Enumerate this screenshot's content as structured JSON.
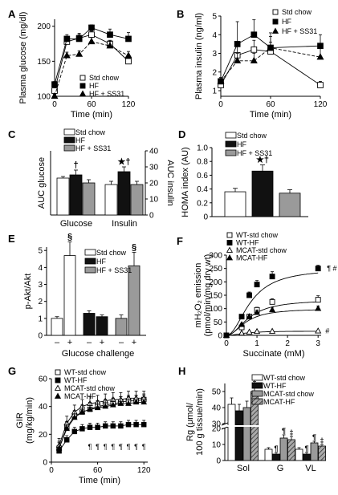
{
  "chart_data": [
    {
      "panel": "A",
      "type": "line",
      "xlabel": "Time (min)",
      "ylabel": "Plasma glucose (mg/dl)",
      "xlim": [
        0,
        120
      ],
      "ylim": [
        100,
        210
      ],
      "xticks": [
        "0",
        "60",
        "120"
      ],
      "yticks": [
        "100",
        "150",
        "200"
      ],
      "legend": [
        "Std chow",
        "HF",
        "HF + SS31"
      ],
      "x": [
        0,
        20,
        40,
        60,
        90,
        120
      ],
      "series": [
        {
          "name": "Std chow",
          "values": [
            108,
            178,
            183,
            188,
            175,
            150
          ],
          "err": [
            3,
            5,
            5,
            5,
            5,
            5
          ],
          "marker": "open-square",
          "line": "solid"
        },
        {
          "name": "HF",
          "values": [
            117,
            182,
            182,
            198,
            188,
            182
          ],
          "err": [
            4,
            6,
            8,
            4,
            8,
            9
          ],
          "marker": "filled-square",
          "line": "solid"
        },
        {
          "name": "HF + SS31",
          "values": [
            100,
            158,
            160,
            178,
            172,
            158
          ],
          "err": [
            3,
            5,
            5,
            6,
            6,
            6
          ],
          "marker": "filled-triangle",
          "line": "dashed"
        }
      ]
    },
    {
      "panel": "B",
      "type": "line",
      "xlabel": "Time (min)",
      "ylabel": "Plasma insulin (ng/ml)",
      "xlim": [
        0,
        120
      ],
      "ylim": [
        0.7,
        5
      ],
      "xticks": [
        "0",
        "60",
        "120"
      ],
      "yticks": [
        "1",
        "2",
        "3",
        "4",
        "5"
      ],
      "legend": [
        "Std chow",
        "HF",
        "HF + SS31"
      ],
      "x": [
        0,
        20,
        40,
        60,
        120
      ],
      "series": [
        {
          "name": "Std chow",
          "values": [
            1.3,
            2.9,
            3.2,
            3.1,
            1.3
          ],
          "err": [
            0.2,
            0.6,
            0.5,
            0.5,
            0.2
          ],
          "marker": "open-square",
          "line": "solid"
        },
        {
          "name": "HF",
          "values": [
            1.5,
            3.5,
            4.0,
            3.3,
            3.4
          ],
          "err": [
            0.2,
            1.2,
            0.8,
            0.8,
            0.6
          ],
          "marker": "filled-square",
          "line": "solid"
        },
        {
          "name": "HF + SS31",
          "values": [
            1.5,
            2.6,
            2.6,
            3.3,
            2.8
          ],
          "err": [
            0.2,
            0.4,
            0.4,
            0.6,
            0.5
          ],
          "marker": "filled-triangle",
          "line": "dashed"
        }
      ]
    },
    {
      "panel": "C",
      "type": "bar",
      "ylabel": "AUC glucose",
      "ylabel_right": "AUC insulin",
      "categories": [
        "Glucose",
        "Insulin"
      ],
      "ylim_right": [
        0,
        40
      ],
      "yticks_right": [
        "0",
        "10",
        "20",
        "30",
        "40"
      ],
      "legend": [
        "Std chow",
        "HF",
        "HF + SS31"
      ],
      "series": [
        {
          "name": "Std chow",
          "values": [
            23,
            19
          ],
          "err": [
            1,
            2
          ],
          "fill": "#ffffff"
        },
        {
          "name": "HF",
          "values": [
            25,
            27
          ],
          "err": [
            3,
            3
          ],
          "fill": "#111111"
        },
        {
          "name": "HF + SS31",
          "values": [
            20,
            19
          ],
          "err": [
            2,
            2
          ],
          "fill": "#9a9a9a"
        }
      ],
      "annotations": [
        {
          "category": "Glucose",
          "series": "HF",
          "text": "†"
        },
        {
          "category": "Insulin",
          "series": "HF",
          "text": "★†"
        }
      ]
    },
    {
      "panel": "D",
      "type": "bar",
      "ylabel": "HOMA index (AU)",
      "ylim": [
        0,
        1.0
      ],
      "yticks": [
        "0",
        "0.2",
        "0.4",
        "0.6",
        "0.8",
        "1.0"
      ],
      "legend": [
        "Std chow",
        "HF",
        "HF + SS31"
      ],
      "categories": [
        "Std chow",
        "HF",
        "HF + SS31"
      ],
      "values": [
        0.36,
        0.66,
        0.34
      ],
      "err": [
        0.05,
        0.09,
        0.05
      ],
      "fills": [
        "#ffffff",
        "#111111",
        "#9a9a9a"
      ],
      "annotations": [
        {
          "category": "HF",
          "text": "★†"
        }
      ]
    },
    {
      "panel": "E",
      "type": "bar",
      "ylabel": "p-Akt/Akt",
      "xlabel": "Glucose challenge",
      "ylim": [
        0,
        5.2
      ],
      "yticks": [
        "0",
        "1",
        "2",
        "3",
        "4",
        "5"
      ],
      "legend": [
        "Std chow",
        "HF",
        "HF + SS31"
      ],
      "categories": [
        "–",
        "+",
        "–",
        "+",
        "–",
        "+"
      ],
      "values": [
        1.0,
        4.7,
        1.3,
        1.1,
        1.0,
        4.1
      ],
      "err": [
        0.1,
        0.8,
        0.15,
        0.1,
        0.2,
        0.8
      ],
      "fills": [
        "#ffffff",
        "#ffffff",
        "#111111",
        "#111111",
        "#9a9a9a",
        "#9a9a9a"
      ],
      "annotations": [
        {
          "index": 1,
          "text": "§"
        },
        {
          "index": 5,
          "text": "§"
        }
      ]
    },
    {
      "panel": "F",
      "type": "line",
      "xlabel": "Succinate (mM)",
      "ylabel": "mH₂O₂ emission (pmol/min/mg dry wt)",
      "xlim": [
        0,
        3.1
      ],
      "ylim": [
        0,
        300
      ],
      "xticks": [
        "0",
        "1",
        "2",
        "3"
      ],
      "yticks": [
        "0",
        "50",
        "100",
        "150",
        "200",
        "250",
        "300"
      ],
      "legend": [
        "WT-std chow",
        "WT-HF",
        "MCAT-std chow",
        "MCAT-HF"
      ],
      "x": [
        0,
        0.5,
        0.75,
        1.0,
        1.5,
        3.0
      ],
      "series": [
        {
          "name": "WT-std chow",
          "values": [
            0,
            30,
            70,
            95,
            125,
            133
          ],
          "err": [
            0,
            5,
            8,
            10,
            12,
            15
          ],
          "marker": "open-square"
        },
        {
          "name": "WT-HF",
          "values": [
            0,
            70,
            150,
            190,
            220,
            250
          ],
          "err": [
            0,
            8,
            12,
            15,
            18,
            12
          ],
          "marker": "filled-square"
        },
        {
          "name": "MCAT-std chow",
          "values": [
            0,
            8,
            12,
            14,
            15,
            16
          ],
          "err": [
            0,
            2,
            2,
            2,
            2,
            2
          ],
          "marker": "open-triangle"
        },
        {
          "name": "MCAT-HF",
          "values": [
            0,
            40,
            70,
            85,
            95,
            100
          ],
          "err": [
            0,
            5,
            8,
            8,
            10,
            10
          ],
          "marker": "filled-triangle"
        }
      ],
      "annotations": [
        {
          "series": "WT-HF",
          "text": "¶ #"
        },
        {
          "series": "MCAT-std chow",
          "text": "#"
        }
      ]
    },
    {
      "panel": "G",
      "type": "line",
      "xlabel": "Time (min)",
      "ylabel": "GIR (mg/kg/min)",
      "xlim": [
        0,
        125
      ],
      "ylim": [
        0,
        60
      ],
      "xticks": [
        "0",
        "60",
        "120"
      ],
      "yticks": [
        "0",
        "20",
        "40",
        "60"
      ],
      "legend": [
        "WT-std chow",
        "WT-HF",
        "MCAT-std chow",
        "MCAT-HF"
      ],
      "x": [
        10,
        20,
        30,
        40,
        50,
        60,
        70,
        80,
        90,
        100,
        110,
        120
      ],
      "series": [
        {
          "name": "WT-std chow",
          "values": [
            10,
            25,
            33,
            36,
            38,
            40,
            41,
            42,
            43,
            44,
            44,
            45
          ],
          "err": 4,
          "marker": "open-square"
        },
        {
          "name": "WT-HF",
          "values": [
            8,
            16,
            22,
            24,
            25,
            25,
            26,
            26,
            26,
            27,
            27,
            27
          ],
          "err": 3,
          "marker": "filled-square"
        },
        {
          "name": "MCAT-std chow",
          "values": [
            12,
            28,
            36,
            40,
            42,
            43,
            44,
            45,
            45,
            46,
            46,
            46
          ],
          "err": 5,
          "marker": "open-triangle"
        },
        {
          "name": "MCAT-HF",
          "values": [
            10,
            24,
            32,
            36,
            38,
            39,
            40,
            41,
            42,
            42,
            43,
            43
          ],
          "err": 5,
          "marker": "filled-triangle"
        }
      ],
      "annotations": {
        "text": "¶",
        "count": 8
      }
    },
    {
      "panel": "H",
      "type": "bar",
      "ylabel": "Rg (μmol/100 g tissue/min)",
      "categories": [
        "Sol",
        "G",
        "VL"
      ],
      "yticks": [
        "0",
        "10",
        "20",
        "30",
        "40",
        "50"
      ],
      "legend": [
        "WT-std chow",
        "WT-HF",
        "MCAT-std chow",
        "MCAT-HF"
      ],
      "series": [
        {
          "name": "WT-std chow",
          "values": [
            42,
            7,
            7
          ],
          "err": [
            4,
            1,
            1
          ],
          "fill": "#ffffff"
        },
        {
          "name": "WT-HF",
          "values": [
            38,
            4,
            4
          ],
          "err": [
            4,
            1,
            1
          ],
          "fill": "#111111"
        },
        {
          "name": "MCAT-std chow",
          "values": [
            40,
            14,
            11
          ],
          "err": [
            4,
            2,
            1
          ],
          "fill": "#9a9a9a"
        },
        {
          "name": "MCAT-HF",
          "values": [
            50,
            13,
            9
          ],
          "err": [
            3,
            2,
            1
          ],
          "fill": "hatched"
        }
      ],
      "annotations": [
        {
          "category": "Sol",
          "series": "MCAT-HF",
          "text": "†"
        },
        {
          "category": "G",
          "series": "WT-HF",
          "text": "¶"
        },
        {
          "category": "G",
          "series": "MCAT-std chow",
          "text": "¶"
        },
        {
          "category": "G",
          "series": "MCAT-HF",
          "text": "‡"
        },
        {
          "category": "VL",
          "series": "WT-HF",
          "text": "¶"
        },
        {
          "category": "VL",
          "series": "MCAT-std chow",
          "text": "¶"
        },
        {
          "category": "VL",
          "series": "MCAT-HF",
          "text": "‡"
        }
      ]
    }
  ]
}
